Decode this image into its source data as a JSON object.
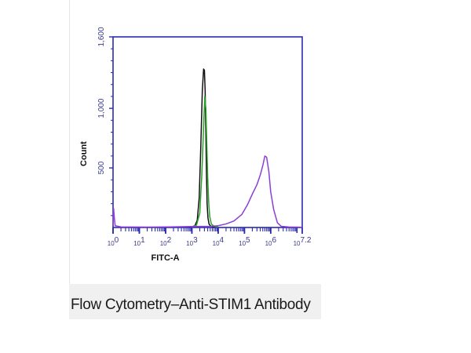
{
  "caption": "Flow Cytometry–Anti-STIM1 Antibody",
  "chart_data": {
    "type": "line",
    "xlabel": "FITC-A",
    "ylabel": "Count",
    "x_scale": "log",
    "xlim": [
      1,
      15848932
    ],
    "ylim": [
      0,
      1600
    ],
    "x_ticks": [
      {
        "value": 1,
        "base": "10",
        "exp": "0"
      },
      {
        "value": 10,
        "base": "10",
        "exp": "1"
      },
      {
        "value": 100,
        "base": "10",
        "exp": "2"
      },
      {
        "value": 1000,
        "base": "10",
        "exp": "3"
      },
      {
        "value": 10000,
        "base": "10",
        "exp": "4"
      },
      {
        "value": 100000,
        "base": "10",
        "exp": "5"
      },
      {
        "value": 1000000,
        "base": "10",
        "exp": "6"
      },
      {
        "value": 15848932,
        "base": "10",
        "exp": "7.2"
      }
    ],
    "y_ticks": [
      {
        "value": 500,
        "label": "500"
      },
      {
        "value": 1000,
        "label": "1,000"
      },
      {
        "value": 1600,
        "label": "1,600"
      }
    ],
    "grid": false,
    "colors": {
      "axis": "#2b2bb0",
      "series_black": "#111111",
      "series_green": "#2ca02c",
      "series_purple": "#8a3fd6"
    },
    "series": [
      {
        "color": "#111111",
        "x": [
          1000,
          1300,
          1600,
          1900,
          2200,
          2500,
          2800,
          3000,
          3200,
          3400,
          3600,
          3800,
          4100,
          4500,
          5000,
          6000,
          8000
        ],
        "y": [
          5,
          15,
          60,
          250,
          700,
          1150,
          1330,
          1320,
          1150,
          800,
          450,
          200,
          80,
          30,
          15,
          8,
          4
        ]
      },
      {
        "color": "#2ca02c",
        "x": [
          1000,
          1500,
          2000,
          2400,
          2800,
          3100,
          3400,
          3700,
          4000,
          4400,
          4800,
          5500,
          7000,
          10000
        ],
        "y": [
          3,
          20,
          120,
          450,
          850,
          1100,
          1000,
          700,
          420,
          200,
          90,
          30,
          10,
          4
        ]
      },
      {
        "color": "#8a3fd6",
        "x": [
          1,
          1.05,
          1.12,
          1.2,
          2,
          20,
          150,
          1000,
          5000,
          10000,
          20000,
          40000,
          80000,
          130000,
          200000,
          300000,
          400000,
          500000,
          600000,
          700000,
          850000,
          1000000,
          1300000,
          1800000,
          2500000,
          5000000,
          15848932
        ],
        "y": [
          20,
          160,
          80,
          15,
          5,
          3,
          5,
          8,
          10,
          15,
          30,
          55,
          110,
          190,
          280,
          360,
          440,
          520,
          600,
          590,
          470,
          300,
          150,
          40,
          10,
          4,
          2
        ]
      }
    ]
  }
}
